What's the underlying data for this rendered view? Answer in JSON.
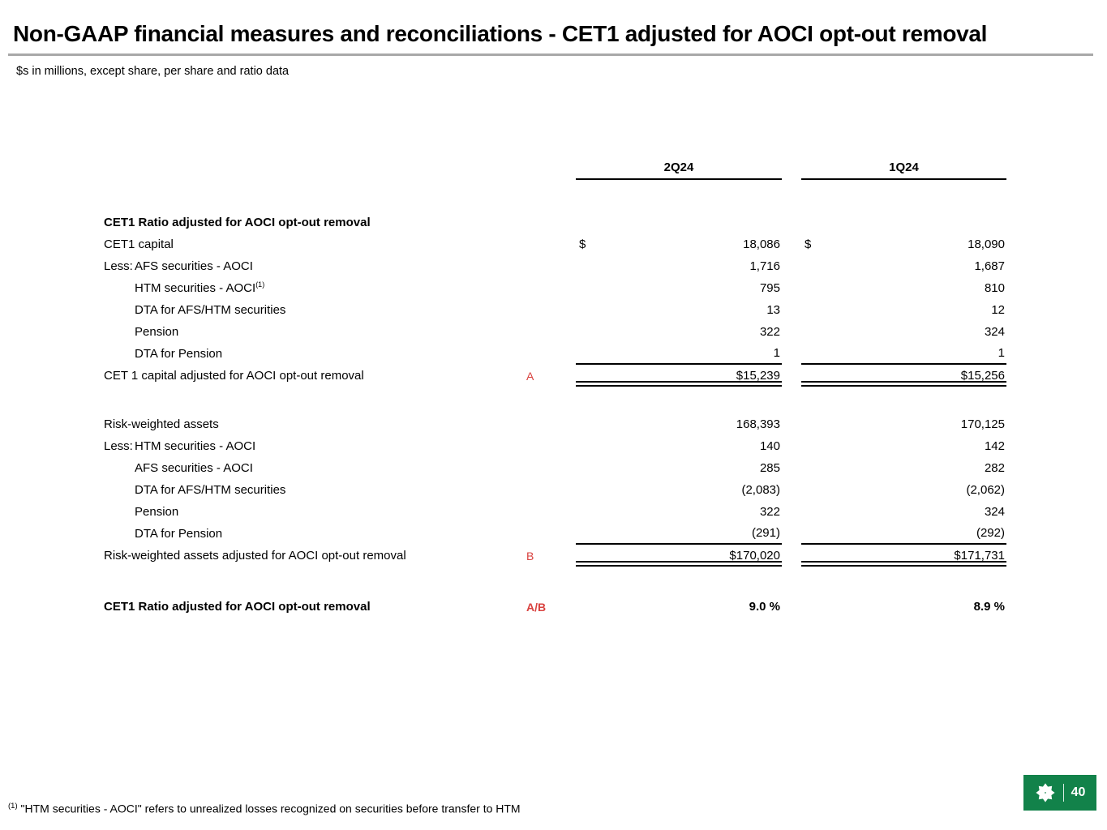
{
  "header": {
    "title": "Non-GAAP financial measures and reconciliations - CET1 adjusted for AOCI opt-out removal",
    "subtitle": "$s in millions, except share, per share and ratio data"
  },
  "table": {
    "column_headers": [
      "2Q24",
      "1Q24"
    ],
    "rows": [
      {
        "label": "CET1 Ratio adjusted for AOCI opt-out removal",
        "bold": true
      },
      {
        "label": "CET1 capital",
        "cur": [
          "$",
          "$"
        ],
        "vals": [
          "18,086",
          "18,090"
        ]
      },
      {
        "prefix": "Less:",
        "label": "AFS securities - AOCI",
        "vals": [
          "1,716",
          "1,687"
        ]
      },
      {
        "indent": 1,
        "label": "HTM securities - AOCI",
        "sup": "(1)",
        "vals": [
          "795",
          "810"
        ]
      },
      {
        "indent": 1,
        "label": "DTA for AFS/HTM securities",
        "vals": [
          "13",
          "12"
        ]
      },
      {
        "indent": 1,
        "label": "Pension",
        "vals": [
          "322",
          "324"
        ]
      },
      {
        "indent": 1,
        "label": "DTA for Pension",
        "vals": [
          "1",
          "1"
        ],
        "rule_below": true
      },
      {
        "label": "CET 1 capital adjusted for AOCI opt-out removal",
        "ref": "A",
        "vals": [
          "$15,239",
          "$15,256"
        ],
        "total": true
      },
      {
        "spacer": 33
      },
      {
        "label": "Risk-weighted assets",
        "vals": [
          "168,393",
          "170,125"
        ]
      },
      {
        "prefix": "Less:",
        "label": "HTM securities - AOCI",
        "vals": [
          "140",
          "142"
        ]
      },
      {
        "indent": 1,
        "label": "AFS securities - AOCI",
        "vals": [
          "285",
          "282"
        ]
      },
      {
        "indent": 1,
        "label": "DTA for AFS/HTM securities",
        "vals": [
          "(2,083)",
          "(2,062)"
        ]
      },
      {
        "indent": 1,
        "label": "Pension",
        "vals": [
          "322",
          "324"
        ]
      },
      {
        "indent": 1,
        "label": "DTA for Pension",
        "vals": [
          "(291)",
          "(292)"
        ],
        "rule_below": true
      },
      {
        "label": "Risk-weighted assets adjusted for AOCI opt-out removal",
        "ref": "B",
        "vals": [
          "$170,020",
          "$171,731"
        ],
        "total": true
      },
      {
        "spacer": 36
      },
      {
        "label": "CET1 Ratio adjusted for AOCI opt-out removal",
        "bold": true,
        "ref": "A/B",
        "vals": [
          "9.0 %",
          "8.9 %"
        ]
      }
    ]
  },
  "footnote": {
    "marker": "(1)",
    "text": "\"HTM securities - AOCI\" refers to unrealized losses recognized on securities before transfer to HTM"
  },
  "brand": {
    "logo_icon": "citizens-pinwheel-icon",
    "page_number": "40"
  },
  "colors": {
    "brand_green": "#12824A",
    "reference_red": "#D9423F",
    "title_rule_gray": "#A8A8A8",
    "table_line_black": "#000000"
  }
}
